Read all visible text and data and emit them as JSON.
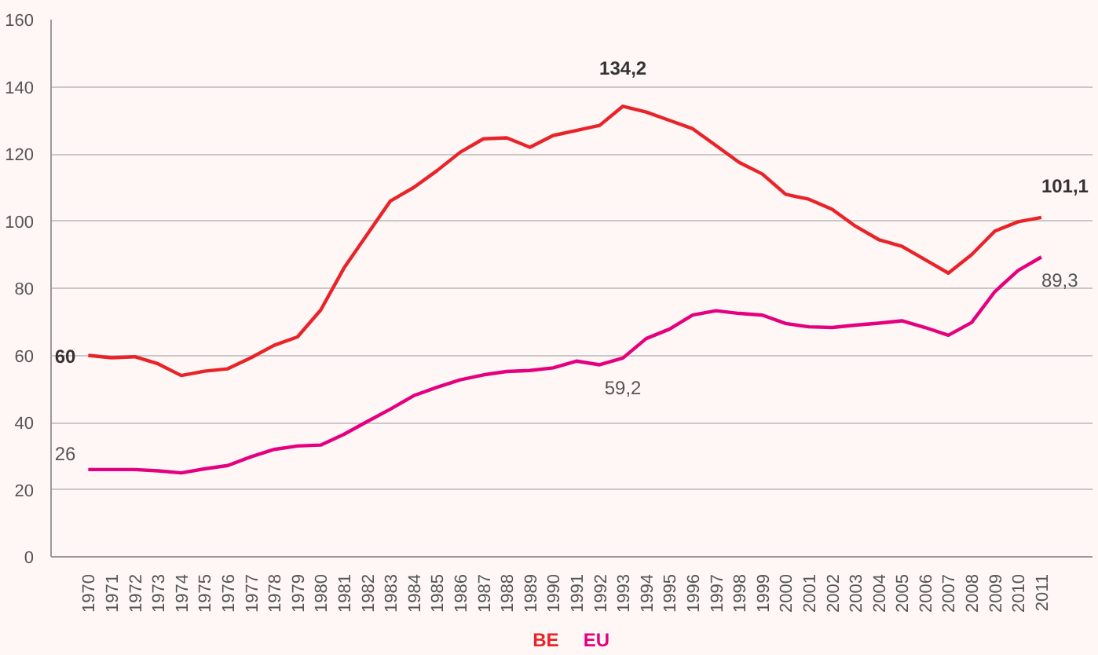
{
  "chart_data": {
    "type": "line",
    "categories": [
      "1970",
      "1971",
      "1972",
      "1973",
      "1974",
      "1975",
      "1976",
      "1977",
      "1978",
      "1979",
      "1980",
      "1981",
      "1982",
      "1983",
      "1984",
      "1985",
      "1986",
      "1987",
      "1988",
      "1989",
      "1990",
      "1991",
      "1992",
      "1993",
      "1994",
      "1995",
      "1996",
      "1997",
      "1998",
      "1999",
      "2000",
      "2001",
      "2002",
      "2003",
      "2004",
      "2005",
      "2006",
      "2007",
      "2008",
      "2009",
      "2010",
      "2011"
    ],
    "series": [
      {
        "name": "BE",
        "color": "#e8242a",
        "values": [
          60,
          59.3,
          59.6,
          57.5,
          54,
          55.3,
          56,
          59.3,
          63,
          65.5,
          73.5,
          86,
          96,
          106,
          110,
          115,
          120.5,
          124.5,
          124.8,
          122,
          125.5,
          127,
          128.5,
          134.2,
          132.5,
          130,
          127.5,
          122.5,
          117.5,
          114,
          108,
          106.5,
          103.5,
          98.5,
          94.5,
          92.5,
          88.5,
          84.5,
          90,
          97,
          99.8,
          101.1
        ],
        "value_labels": [
          "60",
          null,
          null,
          null,
          null,
          null,
          null,
          null,
          null,
          null,
          null,
          null,
          null,
          null,
          null,
          null,
          null,
          null,
          null,
          null,
          null,
          null,
          null,
          "134,2",
          null,
          null,
          null,
          null,
          null,
          null,
          null,
          null,
          null,
          null,
          null,
          null,
          null,
          null,
          null,
          null,
          null,
          "101,1"
        ]
      },
      {
        "name": "EU",
        "color": "#e4007f",
        "values": [
          26,
          26,
          26,
          25.6,
          25,
          26.2,
          27.2,
          29.8,
          32,
          33,
          33.3,
          36.5,
          40.3,
          44,
          48,
          50.5,
          52.7,
          54.2,
          55.2,
          55.5,
          56.3,
          58.3,
          57.2,
          59.2,
          65,
          67.8,
          72,
          73.3,
          72.5,
          72,
          69.5,
          68.5,
          68.3,
          69,
          69.6,
          70.3,
          68.3,
          66,
          69.8,
          79,
          85.3,
          89.3
        ],
        "value_labels": [
          "26",
          null,
          null,
          null,
          null,
          null,
          null,
          null,
          null,
          null,
          null,
          null,
          null,
          null,
          null,
          null,
          null,
          null,
          null,
          null,
          null,
          null,
          null,
          "59,2",
          null,
          null,
          null,
          null,
          null,
          null,
          null,
          null,
          null,
          null,
          null,
          null,
          null,
          null,
          null,
          null,
          null,
          "89,3"
        ]
      }
    ],
    "ylim": [
      0,
      160
    ],
    "yticks": [
      0,
      20,
      40,
      60,
      80,
      100,
      120,
      140,
      160
    ],
    "grid": "y",
    "legend": "bottom",
    "line_style": "solid",
    "marker": "none"
  }
}
